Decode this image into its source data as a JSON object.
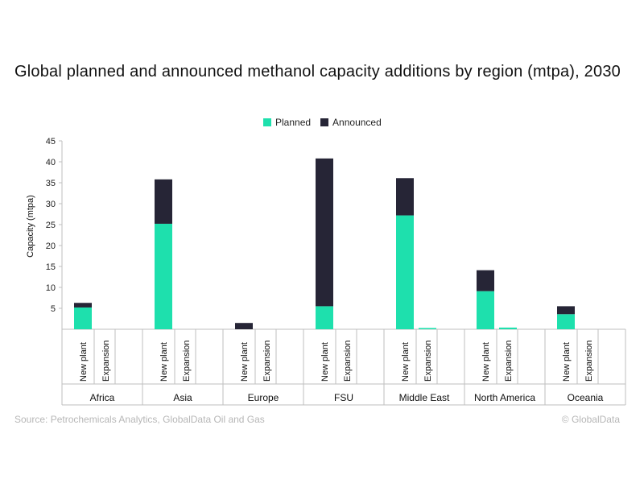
{
  "chart_data": {
    "type": "bar",
    "stacked": true,
    "title": "Global planned and announced methanol capacity additions by region (mtpa), 2030",
    "ylabel": "Capacity (mtpa)",
    "xlabel": "",
    "ylim": [
      0,
      45
    ],
    "yticks": [
      "5",
      "10",
      "15",
      "20",
      "25",
      "30",
      "35",
      "40",
      "45"
    ],
    "groups": [
      "Africa",
      "Asia",
      "Europe",
      "FSU",
      "Middle East",
      "North America",
      "Oceania"
    ],
    "subcategories": [
      "New plant",
      "Expansion"
    ],
    "legend_position": "top-center",
    "series": [
      {
        "name": "Planned",
        "color": "#1ee0ad",
        "values": [
          [
            5.2,
            0
          ],
          [
            25.2,
            0
          ],
          [
            0,
            0
          ],
          [
            5.5,
            0
          ],
          [
            27.2,
            0.3
          ],
          [
            9.1,
            0.4
          ],
          [
            3.6,
            0
          ]
        ]
      },
      {
        "name": "Announced",
        "color": "#262536",
        "values": [
          [
            1.1,
            0
          ],
          [
            10.6,
            0
          ],
          [
            1.5,
            0
          ],
          [
            35.3,
            0
          ],
          [
            8.9,
            0
          ],
          [
            5.0,
            0
          ],
          [
            1.9,
            0
          ]
        ]
      }
    ]
  },
  "source": "Source: Petrochemicals Analytics, GlobalData Oil and Gas",
  "copyright": "© GlobalData"
}
